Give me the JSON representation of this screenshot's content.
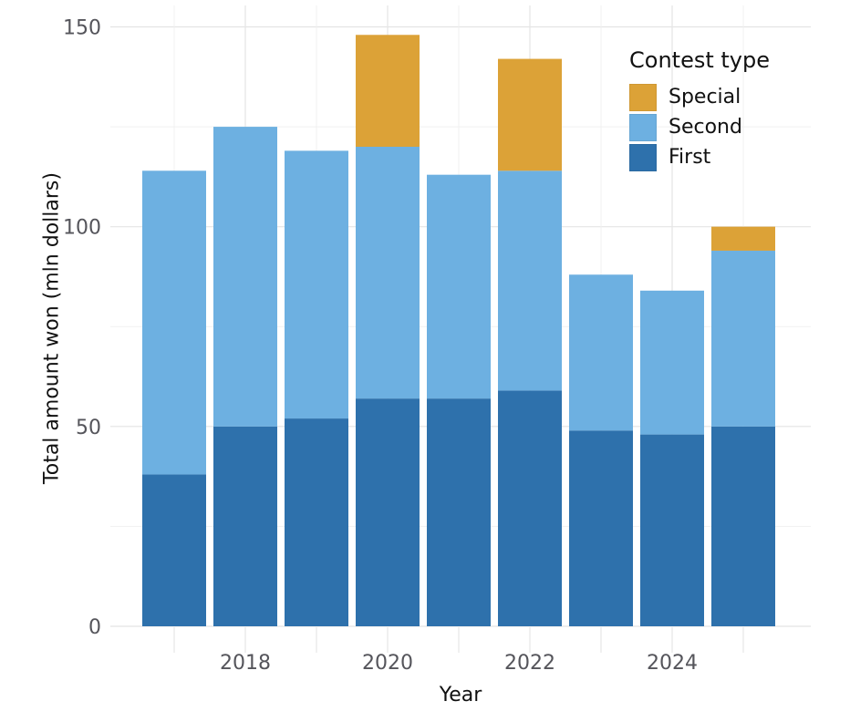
{
  "chart_data": {
    "type": "bar",
    "stacked": true,
    "title": "",
    "xlabel": "Year",
    "ylabel": "Total amount won (mln dollars)",
    "categories": [
      2017,
      2018,
      2019,
      2020,
      2021,
      2022,
      2023,
      2024,
      2025
    ],
    "series": [
      {
        "name": "First",
        "color": "#2E71AC",
        "values": [
          38,
          50,
          52,
          57,
          57,
          59,
          49,
          48,
          50
        ]
      },
      {
        "name": "Second",
        "color": "#6DB0E1",
        "values": [
          76,
          75,
          67,
          63,
          56,
          55,
          39,
          36,
          44
        ]
      },
      {
        "name": "Special",
        "color": "#DCA237",
        "values": [
          0,
          0,
          0,
          28,
          0,
          28,
          0,
          0,
          6
        ]
      }
    ],
    "totals": [
      114,
      125,
      119,
      148,
      113,
      142,
      88,
      84,
      100
    ],
    "ylim": [
      0,
      155
    ],
    "y_ticks_major": [
      0,
      50,
      100,
      150
    ],
    "y_ticks_minor": [
      25,
      75,
      125
    ],
    "x_tick_labels": [
      2018,
      2020,
      2022,
      2024
    ],
    "grid": true,
    "legend": {
      "title": "Contest type",
      "position": "upper-right-inside",
      "entries": [
        "Special",
        "Second",
        "First"
      ]
    },
    "colors": {
      "background": "#ffffff",
      "grid_major": "#e4e4e4",
      "grid_minor": "#f1f1f1",
      "tick_label": "#55555b",
      "axis_title": "#111111"
    }
  }
}
